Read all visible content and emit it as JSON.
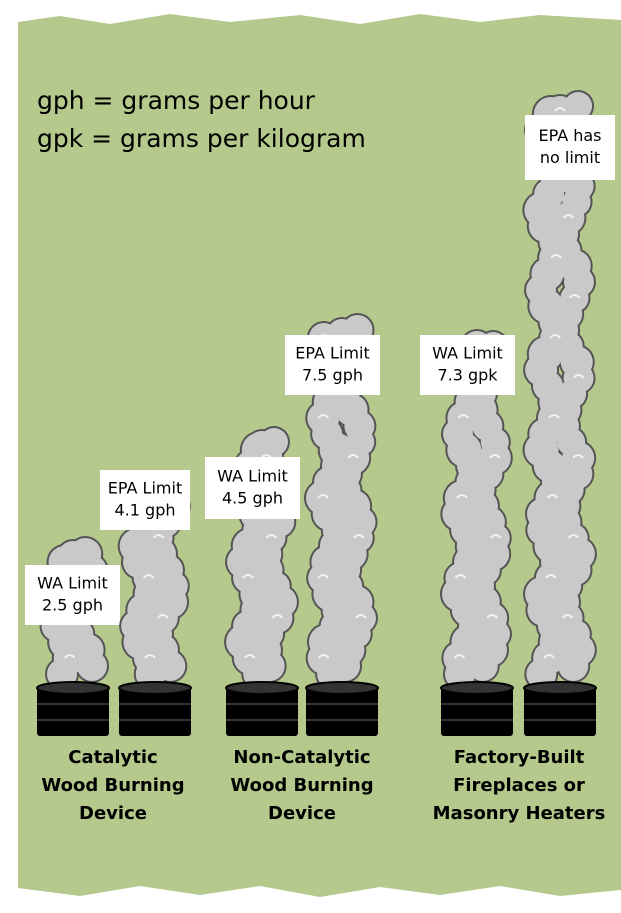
{
  "legend": [
    "gph = grams per hour",
    "gpk = grams per kilogram"
  ],
  "groups": [
    {
      "name": [
        "Catalytic",
        "Wood Burning",
        "Device"
      ],
      "stacks": [
        {
          "label": [
            "WA Limit",
            "2.5 gph"
          ]
        },
        {
          "label": [
            "EPA Limit",
            "4.1 gph"
          ]
        }
      ]
    },
    {
      "name": [
        "Non-Catalytic",
        "Wood Burning",
        "Device"
      ],
      "stacks": [
        {
          "label": [
            "WA Limit",
            "4.5 gph"
          ]
        },
        {
          "label": [
            "EPA Limit",
            "7.5 gph"
          ]
        }
      ]
    },
    {
      "name": [
        "Factory-Built",
        "Fireplaces or",
        "Masonry Heaters"
      ],
      "stacks": [
        {
          "label": [
            "WA Limit",
            "7.3 gpk"
          ]
        },
        {
          "label": [
            "EPA has",
            "no limit"
          ]
        }
      ]
    }
  ]
}
